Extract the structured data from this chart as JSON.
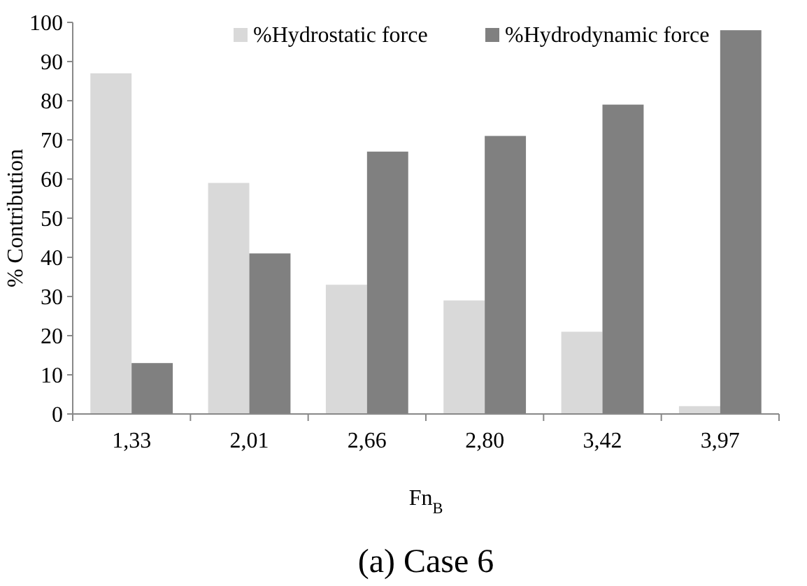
{
  "chart_data": {
    "type": "bar",
    "title": "(a) Case 6",
    "xlabel": "Fn$_{B}$",
    "ylabel": "% Contribution",
    "categories": [
      "1,33",
      "2,01",
      "2,66",
      "2,80",
      "3,42",
      "3,97"
    ],
    "series": [
      {
        "name": "%Hydrostatic force",
        "color": "#d9d9d9",
        "values": [
          87,
          59,
          33,
          29,
          21,
          2
        ]
      },
      {
        "name": "%Hydrodynamic force",
        "color": "#808080",
        "values": [
          13,
          41,
          67,
          71,
          79,
          98
        ]
      }
    ],
    "ylim": [
      0,
      100
    ],
    "yticks": [
      0,
      10,
      20,
      30,
      40,
      50,
      60,
      70,
      80,
      90,
      100
    ],
    "grid": false,
    "legend": "top right"
  }
}
